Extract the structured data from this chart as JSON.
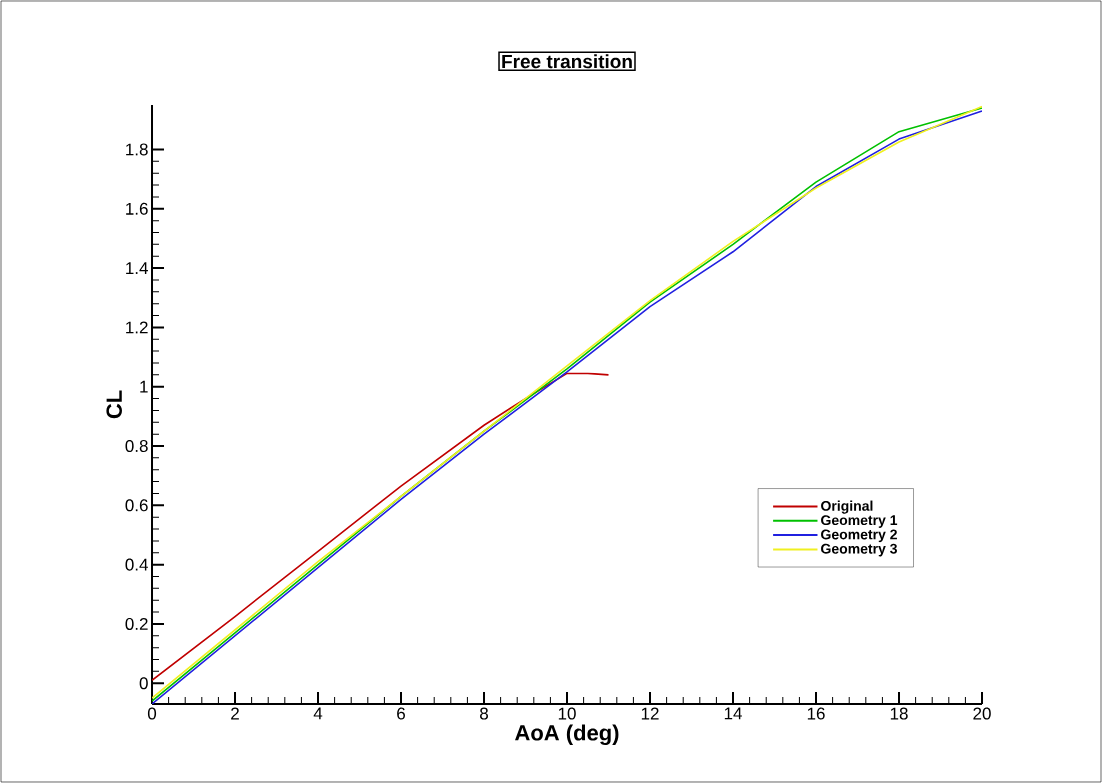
{
  "chart_data": {
    "type": "line",
    "title": "Free transition",
    "xlabel": "AoA (deg)",
    "ylabel": "CL",
    "series": [
      {
        "name": "Original",
        "color": "#c00000",
        "x": [
          0,
          2,
          4,
          6,
          8,
          9,
          10,
          10.5,
          11
        ],
        "values": [
          0.01,
          0.225,
          0.445,
          0.665,
          0.87,
          0.96,
          1.045,
          1.045,
          1.04
        ]
      },
      {
        "name": "Geometry 1",
        "color": "#00c000",
        "x": [
          0,
          2,
          4,
          6,
          8,
          10,
          12,
          14,
          16,
          18,
          20
        ],
        "values": [
          -0.06,
          0.17,
          0.4,
          0.63,
          0.85,
          1.06,
          1.285,
          1.48,
          1.69,
          1.86,
          1.94
        ]
      },
      {
        "name": "Geometry 2",
        "color": "#2020e0",
        "x": [
          0,
          2,
          4,
          6,
          8,
          10,
          12,
          14,
          16,
          18,
          20
        ],
        "values": [
          -0.07,
          0.16,
          0.39,
          0.62,
          0.84,
          1.05,
          1.27,
          1.455,
          1.675,
          1.835,
          1.93
        ]
      },
      {
        "name": "Geometry 3",
        "color": "#f0f020",
        "x": [
          0,
          2,
          4,
          6,
          8,
          10,
          12,
          14,
          16,
          18,
          20
        ],
        "values": [
          -0.05,
          0.18,
          0.41,
          0.63,
          0.85,
          1.07,
          1.29,
          1.49,
          1.67,
          1.825,
          1.945
        ]
      }
    ],
    "xlim": [
      0,
      20
    ],
    "ylim": [
      -0.07,
      1.95
    ],
    "xticks": [
      0,
      2,
      4,
      6,
      8,
      10,
      12,
      14,
      16,
      18,
      20
    ],
    "yticks": [
      0,
      0.2,
      0.4,
      0.6,
      0.8,
      1,
      1.2,
      1.4,
      1.6,
      1.8
    ],
    "legend": "right",
    "grid": false,
    "marker": "none",
    "line_style": "solid"
  }
}
